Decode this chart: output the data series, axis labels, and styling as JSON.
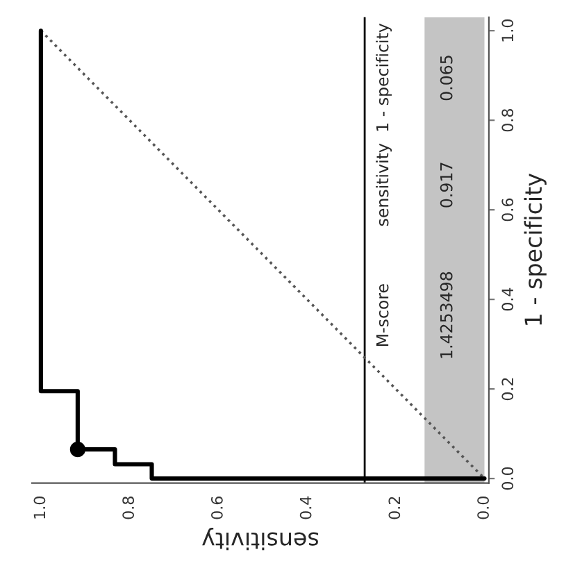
{
  "chart_data": {
    "type": "step",
    "xlabel": "sensitivity",
    "ylabel": "1 - specificity",
    "xlim": [
      1.02,
      -0.01
    ],
    "ylim": [
      -0.01,
      1.03
    ],
    "xticks": [
      {
        "value": 1.0,
        "label": "1.0"
      },
      0.8,
      0.6,
      0.4,
      0.2,
      {
        "value": 0.0,
        "label": "0.0"
      }
    ],
    "yticks": [
      {
        "value": 0.0,
        "label": "0.0"
      },
      0.2,
      0.4,
      0.6,
      0.8,
      {
        "value": 1.0,
        "label": "1.0"
      }
    ],
    "series": [
      {
        "color": "#000000",
        "line_style": "solid",
        "x": [
          1.0,
          1.0,
          0.917,
          0.917,
          0.833,
          0.833,
          0.75,
          0.75,
          0.0
        ],
        "values": [
          1.0,
          0.195,
          0.195,
          0.065,
          0.065,
          0.032,
          0.032,
          0.0,
          0.0
        ]
      },
      {
        "type": "line",
        "color": "#555555",
        "line_style": "dotted",
        "x": [
          1.0,
          0.0
        ],
        "values": [
          1.0,
          0.0
        ]
      },
      {
        "type": "scatter",
        "color": "#000000",
        "marker": "circle",
        "x": [
          0.917
        ],
        "values": [
          0.065
        ]
      }
    ],
    "ref_lines": [
      {
        "axis": "x",
        "value": 0.27,
        "label": null,
        "color": "#000000"
      }
    ],
    "bands": [
      {
        "axis": "x",
        "from": 0.135,
        "to": 0.0,
        "label": null,
        "color": "#c4c4c4"
      }
    ],
    "annotations": [
      "M-score",
      "sensitivity",
      "1 - specificity",
      "1.4253498",
      "0.917",
      "0.065"
    ],
    "grid": false,
    "legend": false
  }
}
